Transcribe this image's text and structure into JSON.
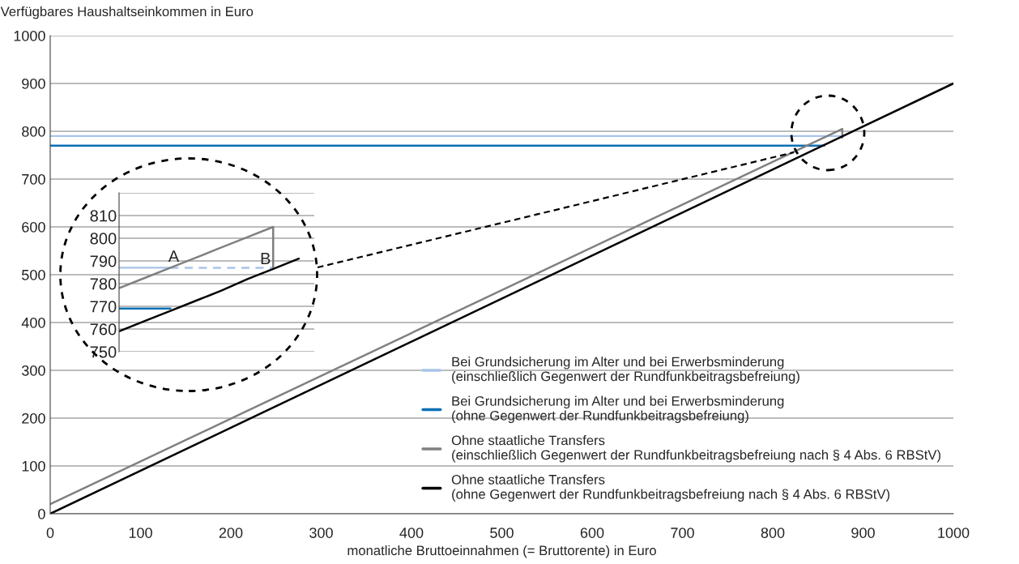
{
  "chart_data": [
    {
      "type": "line",
      "ylabel": "Verfügbares Haushaltseinkommen in Euro",
      "xlabel": "monatliche Bruttoeinnahmen (= Bruttorente) in Euro",
      "xlim": [
        0,
        1000
      ],
      "ylim": [
        0,
        1000
      ],
      "xticks": [
        0,
        100,
        200,
        300,
        400,
        500,
        600,
        700,
        800,
        900,
        1000
      ],
      "yticks": [
        0,
        100,
        200,
        300,
        400,
        500,
        600,
        700,
        800,
        900,
        1000
      ],
      "grid": "y",
      "legend": "bottom right",
      "marker": "none",
      "series": [
        {
          "name": "Bei Grundsicherung im Alter und bei Erwerbsminderung\n(einschließlich Gegenwert der Rundfunkbeitragsbefreiung)",
          "color": "#a9c4ea",
          "x": [
            0,
            875
          ],
          "values": [
            790,
            790
          ]
        },
        {
          "name": "Bei Grundsicherung im Alter und bei Erwerbsminderung\n(ohne Gegenwert der Rundfunkbeitragsbefreiung)",
          "color": "#0a6fb5",
          "x": [
            0,
            857
          ],
          "values": [
            770,
            770
          ]
        },
        {
          "name": "Ohne staatliche Transfers\n(einschließlich Gegenwert der Rundfunkbeitragsbefreiung nach § 4 Abs. 6 RBStV)",
          "color": "#808080",
          "x": [
            0,
            877,
            877
          ],
          "values": [
            20,
            805,
            787
          ]
        },
        {
          "name": "Ohne staatliche Transfers\n(ohne Gegenwert der Rundfunkbeitragsbefreiung nach § 4 Abs. 6 RBStV)",
          "color": "#000000",
          "x": [
            0,
            1000
          ],
          "values": [
            0,
            900
          ]
        }
      ]
    },
    {
      "type": "line",
      "categories": [
        null,
        null,
        null,
        null,
        null,
        null,
        null,
        null
      ],
      "ylim": [
        750,
        820
      ],
      "yticks": [
        750,
        760,
        770,
        780,
        790,
        800,
        810,
        {
          "value": 820,
          "label": null
        }
      ],
      "tick_labels": "y",
      "grid": "y",
      "marker": "none",
      "annotations": [
        "A",
        "B"
      ],
      "series": [
        {
          "color": "#a9c4ea",
          "values": [
            787,
            787,
            787,
            null,
            null,
            null,
            null,
            null
          ],
          "line_style": "solid"
        },
        {
          "color": "#a9c4ea",
          "values": [
            null,
            null,
            787,
            787,
            787,
            787,
            787,
            null
          ],
          "line_style": "dashed"
        },
        {
          "color": "#0a6fb5",
          "values": [
            769,
            769,
            769,
            null,
            null,
            null,
            null,
            null
          ],
          "line_style": "solid"
        },
        {
          "color": "#808080",
          "values": [
            778,
            782.5,
            787,
            791.5,
            796,
            800.5,
            805,
            null
          ],
          "errors": [
            null,
            null,
            null,
            null,
            null,
            null,
            [
              787,
              805
            ],
            null
          ],
          "line_style": "solid"
        },
        {
          "color": "#000000",
          "values": [
            759,
            763.5,
            768,
            772.5,
            777,
            782,
            786.5,
            791
          ],
          "line_style": "solid"
        }
      ]
    }
  ]
}
